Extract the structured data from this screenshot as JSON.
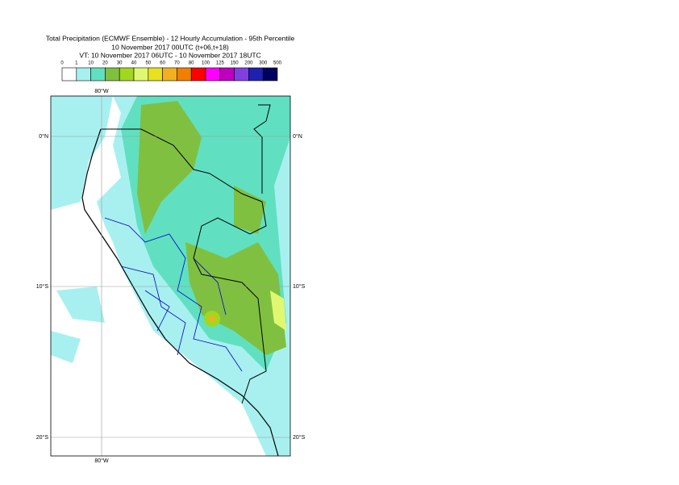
{
  "header": {
    "title": "Total Precipitation (ECMWF Ensemble) - 12 Hourly Accumulation - 95th Percentile",
    "subtitle": "10 November 2017 00UTC (t+06,t+18)",
    "valid_time": "VT: 10 November 2017 06UTC - 10 November 2017 18UTC"
  },
  "legend": {
    "labels": [
      "0",
      "1",
      "10",
      "20",
      "30",
      "40",
      "50",
      "60",
      "70",
      "80",
      "100",
      "125",
      "150",
      "200",
      "300",
      "500"
    ],
    "colors": [
      "#ffffff",
      "#a8f0f0",
      "#60e0c0",
      "#80c040",
      "#a0d820",
      "#e0f870",
      "#e8e020",
      "#f0b020",
      "#f08000",
      "#ff0000",
      "#ff00ff",
      "#c000c0",
      "#8040e0",
      "#2020b0",
      "#000060"
    ]
  },
  "map": {
    "top_labels": [
      "80°W"
    ],
    "bottom_labels": [
      "80°W"
    ],
    "left_labels": [
      "0°N",
      "10°S",
      "20°S"
    ],
    "right_labels": [
      "0°N",
      "10°S",
      "20°S"
    ]
  }
}
